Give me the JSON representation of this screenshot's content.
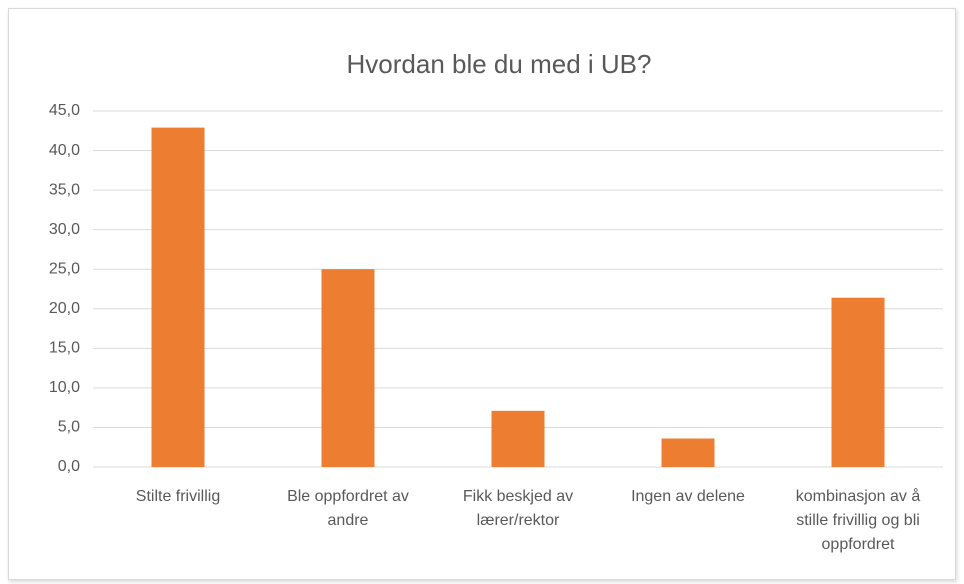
{
  "chart_data": {
    "type": "bar",
    "title": "Hvordan ble du med i UB?",
    "categories": [
      "Stilte frivillig",
      "Ble oppfordret av andre",
      "Fikk beskjed av lærer/rektor",
      "Ingen av delene",
      "kombinasjon av å stille frivillig og bli oppfordret"
    ],
    "values": [
      42.9,
      25.0,
      7.1,
      3.6,
      21.4
    ],
    "color": "#ed7d31",
    "ylim": [
      0,
      45
    ],
    "yticks": [
      {
        "value": 0,
        "label": "0,0"
      },
      {
        "value": 5,
        "label": "5,0"
      },
      {
        "value": 10,
        "label": "10,0"
      },
      {
        "value": 15,
        "label": "15,0"
      },
      {
        "value": 20,
        "label": "20,0"
      },
      {
        "value": 25,
        "label": "25,0"
      },
      {
        "value": 30,
        "label": "30,0"
      },
      {
        "value": 35,
        "label": "35,0"
      },
      {
        "value": 40,
        "label": "40,0"
      },
      {
        "value": 45,
        "label": "45,0"
      }
    ],
    "grid": true
  }
}
